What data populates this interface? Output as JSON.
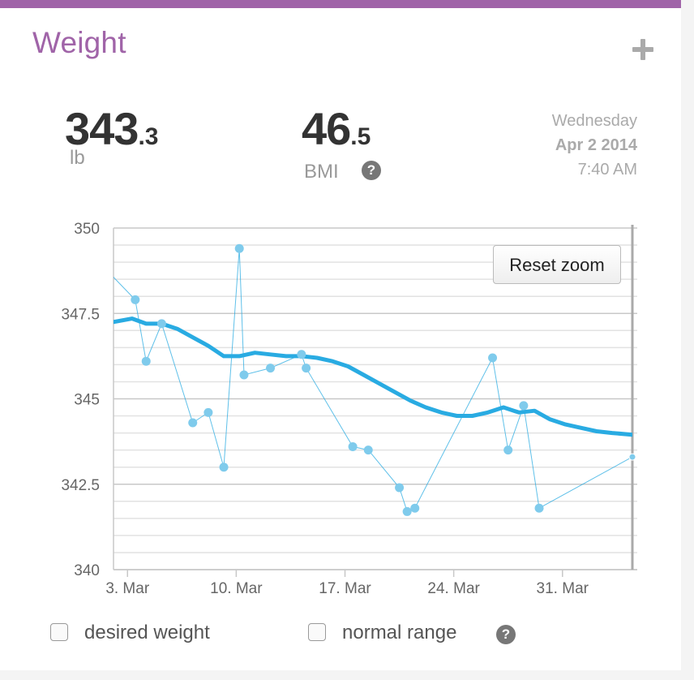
{
  "card": {
    "title": "Weight"
  },
  "summary": {
    "weight_whole": "343",
    "weight_decimal": ".3",
    "weight_unit": "lb",
    "bmi_whole": "46",
    "bmi_decimal": ".5",
    "bmi_label": "BMI",
    "help_glyph": "?"
  },
  "date": {
    "weekday": "Wednesday",
    "date": "Apr 2 2014",
    "time": "7:40 AM"
  },
  "reset_zoom_label": "Reset zoom",
  "options": {
    "desired_weight_label": "desired weight",
    "normal_range_label": "normal range"
  },
  "colors": {
    "accent": "#a064a8",
    "series": "#29abe2"
  },
  "chart_data": {
    "type": "line",
    "title": "",
    "ylim": [
      340,
      350
    ],
    "yticks": [
      340,
      342.5,
      345,
      347.5,
      350
    ],
    "ytick_labels": [
      "340",
      "342.5",
      "345",
      "347.5",
      "350"
    ],
    "xlim": [
      2.1,
      35.5
    ],
    "xticks": [
      3,
      10,
      17,
      24,
      31
    ],
    "xtick_labels": [
      "3. Mar",
      "10. Mar",
      "17. Mar",
      "24. Mar",
      "31. Mar"
    ],
    "grid": true,
    "series": [
      {
        "kind": "measurements",
        "x": [
          1.8,
          3.5,
          4.2,
          5.2,
          7.2,
          8.2,
          9.2,
          10.2,
          10.5,
          12.2,
          14.2,
          14.5,
          17.5,
          18.5,
          20.5,
          21.0,
          21.5,
          26.5,
          27.5,
          28.5,
          29.5,
          35.5
        ],
        "y": [
          348.7,
          347.9,
          346.1,
          347.2,
          344.3,
          344.6,
          343.0,
          349.4,
          345.7,
          345.9,
          346.3,
          345.9,
          343.6,
          343.5,
          342.4,
          341.7,
          341.8,
          346.2,
          343.5,
          344.8,
          341.8,
          343.3
        ]
      },
      {
        "kind": "trend",
        "x": [
          2.1,
          3.3,
          4.2,
          5.2,
          6.2,
          7.2,
          8.2,
          9.2,
          10.2,
          11.2,
          12.2,
          13.2,
          14.2,
          15.2,
          16.2,
          17.2,
          18.2,
          19.2,
          20.2,
          21.2,
          22.2,
          23.2,
          24.2,
          25.2,
          26.2,
          27.2,
          28.2,
          29.2,
          30.2,
          31.2,
          32.2,
          33.2,
          34.2,
          35.5
        ],
        "y": [
          347.25,
          347.35,
          347.2,
          347.2,
          347.05,
          346.8,
          346.55,
          346.25,
          346.25,
          346.35,
          346.3,
          346.25,
          346.25,
          346.2,
          346.1,
          345.95,
          345.7,
          345.45,
          345.2,
          344.95,
          344.75,
          344.6,
          344.5,
          344.5,
          344.6,
          344.75,
          344.6,
          344.65,
          344.4,
          344.25,
          344.15,
          344.05,
          344.0,
          343.95
        ]
      }
    ]
  }
}
